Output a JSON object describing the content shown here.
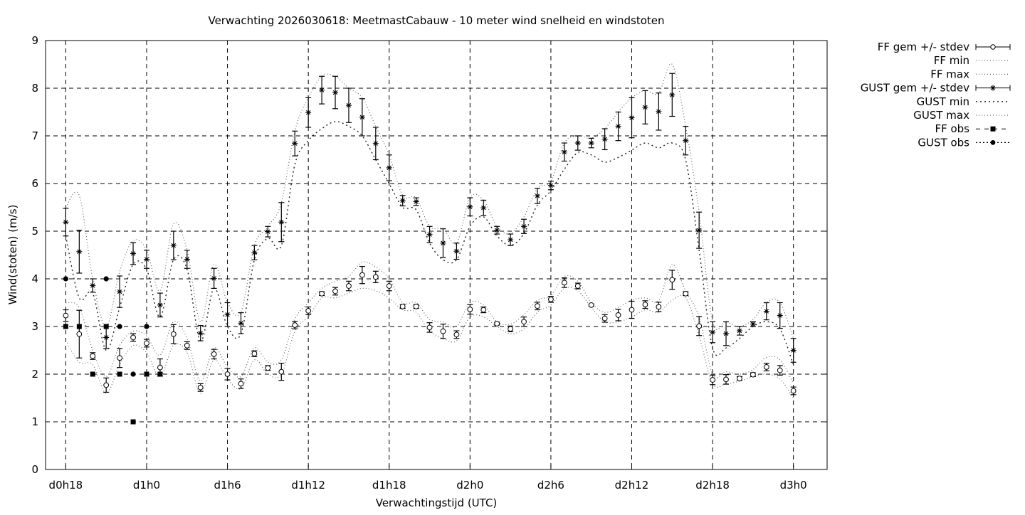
{
  "chart_data": {
    "type": "line",
    "title": "Verwachting 2026030618: MeetmastCabauw - 10 meter wind snelheid en windstoten",
    "xlabel": "Verwachtingstijd (UTC)",
    "ylabel": "Wind(stoten) (m/s)",
    "xlim": [
      -0.75,
      28.25
    ],
    "ylim": [
      0,
      9
    ],
    "grid": true,
    "legend_position": "outside-right",
    "x_ticks": [
      {
        "value": 0,
        "label": "d0h18"
      },
      {
        "value": 3,
        "label": "d1h0"
      },
      {
        "value": 6,
        "label": "d1h6"
      },
      {
        "value": 9,
        "label": "d1h12"
      },
      {
        "value": 12,
        "label": "d1h18"
      },
      {
        "value": 15,
        "label": "d2h0"
      },
      {
        "value": 18,
        "label": "d2h6"
      },
      {
        "value": 21,
        "label": "d2h12"
      },
      {
        "value": 24,
        "label": "d2h18"
      },
      {
        "value": 27,
        "label": "d3h0"
      }
    ],
    "y_ticks": [
      {
        "value": 0,
        "label": "0"
      },
      {
        "value": 1,
        "label": "1"
      },
      {
        "value": 2,
        "label": "2"
      },
      {
        "value": 3,
        "label": "3"
      },
      {
        "value": 4,
        "label": "4"
      },
      {
        "value": 5,
        "label": "5"
      },
      {
        "value": 6,
        "label": "6"
      },
      {
        "value": 7,
        "label": "7"
      },
      {
        "value": 8,
        "label": "8"
      },
      {
        "value": 9,
        "label": "9"
      }
    ],
    "x": [
      0,
      0.5,
      1,
      1.5,
      2,
      2.5,
      3,
      3.5,
      4,
      4.5,
      5,
      5.5,
      6,
      6.5,
      7,
      7.5,
      8,
      8.5,
      9,
      9.5,
      10,
      10.5,
      11,
      11.5,
      12,
      12.5,
      13,
      13.5,
      14,
      14.5,
      15,
      15.5,
      16,
      16.5,
      17,
      17.5,
      18,
      18.5,
      19,
      19.5,
      20,
      20.5,
      21,
      21.5,
      22,
      22.5,
      23,
      23.5,
      24,
      24.5,
      25,
      25.5,
      26,
      26.5,
      27
    ],
    "series": [
      {
        "name": "FF gem +/- stdev",
        "values": [
          3.23,
          2.84,
          2.38,
          1.77,
          2.34,
          2.77,
          2.65,
          2.14,
          2.84,
          2.6,
          1.72,
          2.42,
          2.0,
          1.8,
          2.43,
          2.13,
          2.05,
          3.03,
          3.33,
          3.69,
          3.74,
          3.85,
          4.08,
          4.04,
          3.85,
          3.42,
          3.42,
          2.98,
          2.9,
          2.83,
          3.36,
          3.35,
          3.06,
          2.95,
          3.1,
          3.43,
          3.57,
          3.92,
          3.85,
          3.45,
          3.17,
          3.24,
          3.35,
          3.46,
          3.41,
          3.98,
          3.69,
          3.01,
          1.88,
          1.89,
          1.91,
          1.99,
          2.15,
          2.08,
          1.65
        ],
        "stdev": [
          0.12,
          0.5,
          0.07,
          0.15,
          0.2,
          0.08,
          0.08,
          0.18,
          0.2,
          0.08,
          0.08,
          0.1,
          0.12,
          0.1,
          0.06,
          0.05,
          0.18,
          0.08,
          0.08,
          0.04,
          0.08,
          0.1,
          0.18,
          0.12,
          0.1,
          0.04,
          0.04,
          0.1,
          0.15,
          0.08,
          0.1,
          0.06,
          0.03,
          0.06,
          0.1,
          0.08,
          0.06,
          0.1,
          0.06,
          0.02,
          0.08,
          0.12,
          0.18,
          0.08,
          0.1,
          0.2,
          0.04,
          0.2,
          0.1,
          0.1,
          0.04,
          0.04,
          0.08,
          0.1,
          0.08
        ]
      },
      {
        "name": "FF min",
        "values": [
          2.7,
          2.25,
          2.2,
          1.6,
          2.2,
          2.6,
          2.45,
          1.95,
          2.6,
          2.45,
          1.6,
          2.3,
          1.9,
          1.7,
          2.3,
          2.0,
          2.0,
          2.9,
          3.2,
          3.6,
          3.6,
          3.7,
          3.8,
          3.75,
          3.6,
          3.35,
          3.3,
          2.9,
          2.75,
          2.7,
          3.2,
          3.2,
          3.0,
          2.85,
          2.95,
          3.3,
          3.45,
          3.8,
          3.75,
          3.4,
          3.1,
          3.1,
          3.2,
          3.35,
          3.3,
          3.55,
          3.6,
          2.8,
          1.8,
          1.8,
          1.85,
          1.95,
          2.0,
          1.9,
          1.5
        ]
      },
      {
        "name": "FF max",
        "values": [
          3.5,
          3.4,
          2.5,
          1.95,
          2.6,
          2.9,
          2.8,
          2.4,
          3.1,
          2.75,
          1.85,
          2.55,
          2.15,
          1.95,
          2.55,
          2.25,
          2.3,
          3.15,
          3.5,
          3.8,
          3.95,
          4.05,
          4.35,
          4.25,
          4.0,
          3.5,
          3.5,
          3.15,
          3.1,
          3.0,
          3.5,
          3.45,
          3.1,
          3.05,
          3.25,
          3.55,
          3.65,
          4.05,
          3.95,
          3.5,
          3.3,
          3.4,
          3.55,
          3.6,
          3.55,
          4.3,
          3.75,
          3.2,
          2.0,
          2.05,
          2.0,
          2.1,
          2.35,
          2.3,
          1.8
        ]
      },
      {
        "name": "GUST gem +/- stdev",
        "values": [
          5.19,
          4.57,
          3.86,
          2.77,
          3.73,
          4.53,
          4.41,
          3.45,
          4.7,
          4.41,
          2.86,
          4.01,
          3.25,
          3.07,
          4.55,
          4.99,
          5.19,
          6.84,
          7.49,
          7.96,
          7.91,
          7.64,
          7.39,
          6.84,
          6.33,
          5.64,
          5.62,
          4.93,
          4.75,
          4.58,
          5.51,
          5.49,
          5.02,
          4.82,
          5.1,
          5.74,
          5.96,
          6.66,
          6.85,
          6.85,
          6.93,
          7.2,
          7.38,
          7.6,
          7.51,
          7.86,
          6.9,
          5.02,
          2.88,
          2.85,
          2.91,
          3.05,
          3.32,
          3.23,
          2.5
        ]
      },
      {
        "name": "GUST min",
        "values": [
          4.9,
          3.6,
          3.7,
          2.5,
          3.4,
          4.3,
          4.2,
          3.2,
          4.4,
          4.2,
          2.7,
          3.8,
          3.0,
          2.85,
          4.4,
          4.85,
          4.7,
          6.4,
          6.9,
          7.15,
          7.3,
          7.2,
          7.0,
          6.5,
          6.0,
          5.5,
          5.45,
          4.75,
          4.4,
          4.4,
          5.1,
          5.3,
          4.9,
          4.7,
          4.95,
          5.55,
          5.85,
          6.3,
          6.65,
          6.6,
          6.45,
          6.55,
          6.7,
          6.85,
          6.75,
          6.85,
          6.5,
          4.6,
          2.55,
          2.55,
          2.75,
          3.0,
          3.1,
          2.95,
          2.2
        ]
      },
      {
        "name": "GUST max",
        "values": [
          5.5,
          5.75,
          4.0,
          3.0,
          4.15,
          4.8,
          4.6,
          3.75,
          5.15,
          4.6,
          3.1,
          4.3,
          3.5,
          3.3,
          4.7,
          5.1,
          5.6,
          7.1,
          7.8,
          8.25,
          8.25,
          8.0,
          7.8,
          7.2,
          6.6,
          5.75,
          5.7,
          5.1,
          5.05,
          4.75,
          5.7,
          5.65,
          5.1,
          4.95,
          5.3,
          5.9,
          6.05,
          6.85,
          7.0,
          6.95,
          7.15,
          7.5,
          7.8,
          7.95,
          7.9,
          8.5,
          7.2,
          5.4,
          3.1,
          3.1,
          3.0,
          3.15,
          3.5,
          3.5,
          2.75
        ]
      },
      {
        "name": "FF obs",
        "x": [
          0,
          0.5,
          1,
          1.5,
          2,
          2.5,
          3,
          3.5
        ],
        "values": [
          3,
          3,
          2,
          3,
          2,
          1,
          2,
          2
        ]
      },
      {
        "name": "GUST obs",
        "x": [
          0,
          1.5,
          2,
          2.5,
          3
        ],
        "values": [
          4,
          4,
          3,
          2,
          3
        ]
      }
    ]
  }
}
